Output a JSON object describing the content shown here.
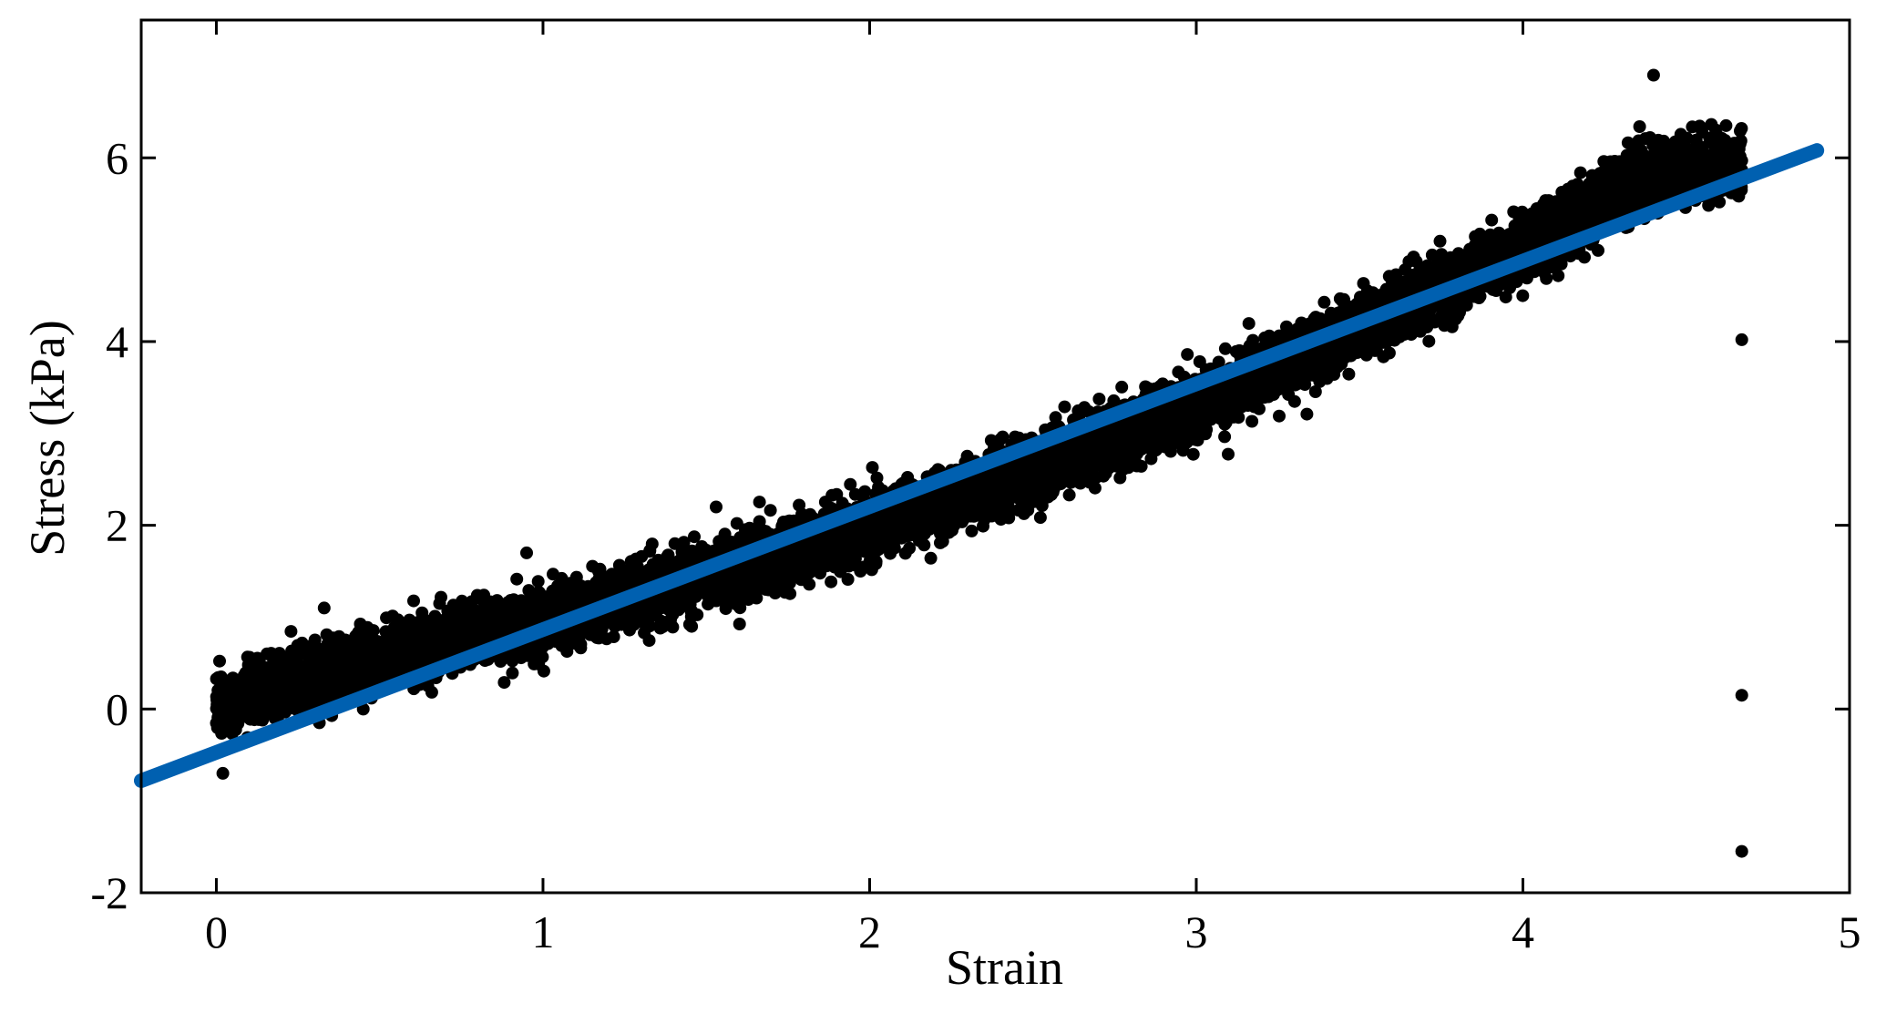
{
  "chart_data": {
    "type": "scatter",
    "title": "",
    "xlabel": "Strain",
    "ylabel": "Stress (kPa)",
    "xlim": [
      -0.23,
      5
    ],
    "ylim": [
      -2,
      7.5
    ],
    "xticks": [
      0,
      1,
      2,
      3,
      4,
      5
    ],
    "yticks": [
      -2,
      0,
      2,
      4,
      6
    ],
    "xtick_labels": [
      "0",
      "1",
      "2",
      "3",
      "4",
      "5"
    ],
    "ytick_labels": [
      "-2",
      "0",
      "2",
      "4",
      "6"
    ],
    "grid": false,
    "legend": "none",
    "series": [
      {
        "kind": "scatter",
        "color": "#000000",
        "x_range": [
          0,
          4.67
        ],
        "trend": {
          "x": [
            0,
            0.5,
            1,
            1.5,
            2,
            2.5,
            3,
            3.5,
            4,
            4.35,
            4.67
          ],
          "y": [
            0.05,
            0.55,
            0.95,
            1.45,
            2.0,
            2.6,
            3.3,
            4.15,
            5.0,
            5.8,
            5.95
          ]
        },
        "spread": 0.3,
        "point_count": 9000,
        "outliers": [
          {
            "x": 4.67,
            "y": 4.02
          },
          {
            "x": 4.67,
            "y": 0.15
          },
          {
            "x": 4.67,
            "y": -1.55
          },
          {
            "x": 4.4,
            "y": 6.9
          },
          {
            "x": 0.33,
            "y": 1.1
          },
          {
            "x": 0.95,
            "y": 1.7
          },
          {
            "x": 1.53,
            "y": 2.2
          },
          {
            "x": 0.02,
            "y": -0.7
          }
        ]
      },
      {
        "kind": "line",
        "color": "#0060b0",
        "x": [
          -0.23,
          4.9
        ],
        "y": [
          -0.78,
          6.08
        ]
      }
    ]
  }
}
